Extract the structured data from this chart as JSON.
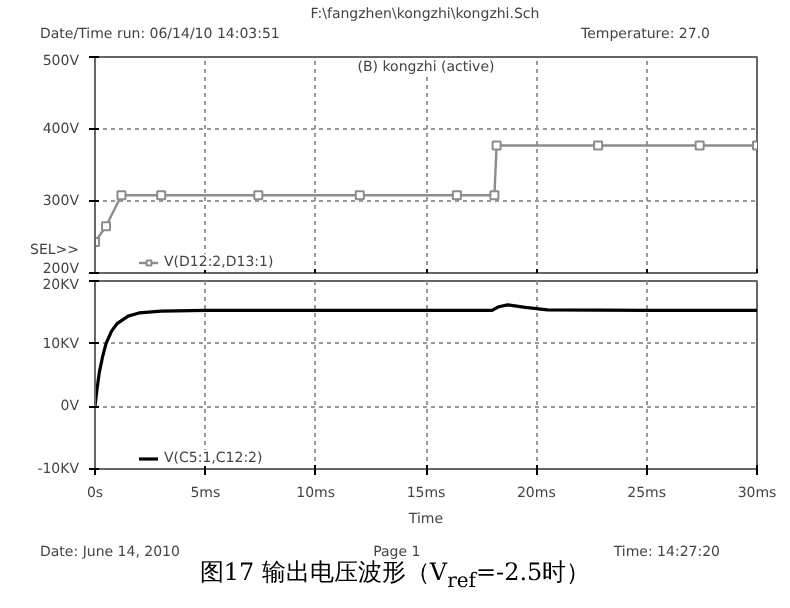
{
  "chart_data": [
    {
      "type": "line",
      "title": "(B) kongzhi (active)",
      "annotations": [
        "F:\\fangzhen\\kongzhi\\kongzhi.Sch",
        "Date/Time run: 06/14/10  14:03:51",
        "Temperature: 27.0",
        "SEL>>"
      ],
      "x": [
        0,
        0.5,
        1.2,
        3,
        7.4,
        12,
        16.4,
        18.1,
        18.2,
        22.8,
        27.4,
        30
      ],
      "series": [
        {
          "name": "V(D12:2,D13:1)",
          "color": "#8c8c8c",
          "values": [
            243,
            265,
            308,
            308,
            308,
            308,
            308,
            308,
            377,
            377,
            377,
            377
          ]
        }
      ],
      "xlim": [
        0,
        30
      ],
      "xticks": [
        {
          "value": 0,
          "label": null
        },
        {
          "value": 5,
          "label": null
        },
        {
          "value": 10,
          "label": null
        },
        {
          "value": 15,
          "label": null
        },
        {
          "value": 20,
          "label": null
        },
        {
          "value": 25,
          "label": null
        },
        {
          "value": 30,
          "label": null
        }
      ],
      "ylim": [
        200,
        500
      ],
      "yticks": [
        {
          "value": 200,
          "label": "200V"
        },
        {
          "value": 300,
          "label": "300V"
        },
        {
          "value": 400,
          "label": "400V"
        },
        {
          "value": 500,
          "label": "500V"
        }
      ],
      "tick_labels": "y",
      "grid": true,
      "legend": "bottom left",
      "marker": "square"
    },
    {
      "type": "line",
      "xlabel": "Time",
      "annotations": [
        "Date: June 14, 2010",
        "Page 1",
        "Time: 14:27:20",
        "图17 输出电压波形（V$_{ref}$=-2.5时）"
      ],
      "x": [
        0,
        0.1,
        0.2,
        0.35,
        0.5,
        0.75,
        1,
        1.5,
        2,
        3,
        5,
        10,
        15,
        18,
        18.3,
        18.7,
        19.5,
        20.5,
        25,
        30
      ],
      "series": [
        {
          "name": "V(C5:1,C12:2)",
          "color": "#000000",
          "values": [
            0,
            3,
            5.5,
            8,
            10,
            12,
            13.2,
            14.4,
            14.9,
            15.2,
            15.3,
            15.3,
            15.3,
            15.3,
            15.9,
            16.2,
            15.8,
            15.4,
            15.3,
            15.3
          ]
        }
      ],
      "xlim": [
        0,
        30
      ],
      "xticks": [
        {
          "value": 0,
          "label": "0s"
        },
        {
          "value": 5,
          "label": "5ms"
        },
        {
          "value": 10,
          "label": "10ms"
        },
        {
          "value": 15,
          "label": "15ms"
        },
        {
          "value": 20,
          "label": "20ms"
        },
        {
          "value": 25,
          "label": "25ms"
        },
        {
          "value": 30,
          "label": "30ms"
        }
      ],
      "ylim": [
        -10,
        20
      ],
      "yticks": [
        {
          "value": -10,
          "label": "-10KV"
        },
        {
          "value": 0,
          "label": "0V"
        },
        {
          "value": 10,
          "label": "10KV"
        },
        {
          "value": 20,
          "label": "20KV"
        }
      ],
      "grid": true,
      "legend": "bottom left"
    }
  ]
}
